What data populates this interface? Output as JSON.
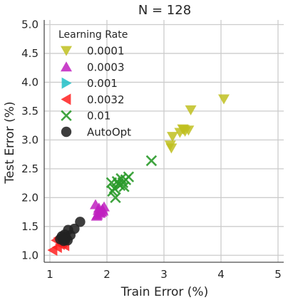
{
  "chart_data": {
    "type": "scatter",
    "title": "N = 128",
    "xlabel": "Train Error (%)",
    "ylabel": "Test Error (%)",
    "xlim": [
      0.9,
      5.1
    ],
    "ylim": [
      0.88,
      5.08
    ],
    "xticks": [
      "1",
      "2",
      "3",
      "4",
      "5"
    ],
    "yticks": [
      "1.0",
      "1.5",
      "2.0",
      "2.5",
      "3.0",
      "3.5",
      "4.0",
      "4.5",
      "5.0"
    ],
    "grid": true,
    "legend": {
      "title": "Learning Rate",
      "position": "top-left"
    },
    "series": [
      {
        "name": "0.0001",
        "marker": "triangle-down",
        "color": "#bfbf20",
        "x": [
          4.05,
          3.47,
          3.33,
          3.28,
          3.43,
          3.35,
          3.37,
          3.15,
          3.11,
          3.13
        ],
        "y": [
          3.71,
          3.52,
          3.19,
          3.13,
          3.17,
          3.18,
          3.15,
          3.06,
          2.91,
          2.86
        ]
      },
      {
        "name": "0.0003",
        "marker": "triangle-up",
        "color": "#bf20bf",
        "x": [
          1.8,
          1.85,
          1.83,
          1.88,
          1.92,
          1.95,
          1.82,
          1.9,
          1.86,
          1.93
        ],
        "y": [
          1.88,
          1.78,
          1.7,
          1.73,
          1.8,
          1.84,
          1.68,
          1.75,
          1.82,
          1.77
        ]
      },
      {
        "name": "0.001",
        "marker": "triangle-right",
        "color": "#20bfc7",
        "x": [],
        "y": []
      },
      {
        "name": "0.0032",
        "marker": "triangle-left",
        "color": "#ff2020",
        "x": [
          1.05,
          1.13,
          1.18,
          1.11,
          1.22,
          1.15,
          1.26,
          1.2
        ],
        "y": [
          1.09,
          1.14,
          1.19,
          1.26,
          1.23,
          1.3,
          1.17,
          1.21
        ]
      },
      {
        "name": "0.01",
        "marker": "x",
        "color": "#2a9a2a",
        "x": [
          2.78,
          2.38,
          2.33,
          2.28,
          2.23,
          2.18,
          2.13,
          2.08,
          2.25,
          2.3,
          2.2,
          2.1,
          2.15
        ],
        "y": [
          2.64,
          2.36,
          2.31,
          2.26,
          2.21,
          2.28,
          2.16,
          2.26,
          2.33,
          2.19,
          2.24,
          2.11,
          2.0
        ]
      },
      {
        "name": "AutoOpt",
        "marker": "circle",
        "color": "#222222",
        "x": [
          1.53,
          1.43,
          1.32,
          1.26,
          1.36,
          1.21,
          1.28,
          1.23,
          1.31,
          1.18,
          1.27,
          1.24,
          1.22
        ],
        "y": [
          1.58,
          1.46,
          1.44,
          1.36,
          1.35,
          1.33,
          1.31,
          1.29,
          1.26,
          1.28,
          1.27,
          1.25,
          1.3
        ]
      }
    ]
  }
}
